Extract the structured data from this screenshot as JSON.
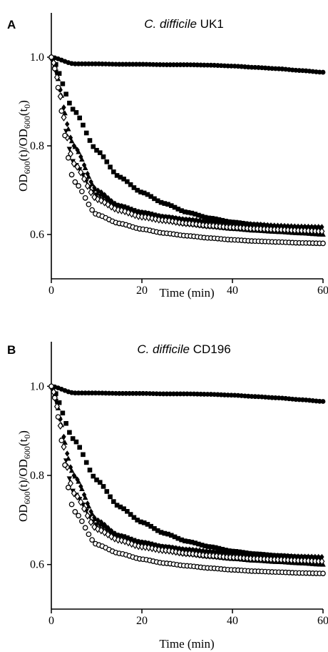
{
  "chart_data": [
    {
      "type": "scatter",
      "panel_label": "A",
      "title": {
        "italic": "C. difficile",
        "rest": " UK1"
      },
      "xlabel": "Time (min)",
      "ylabel": "OD600(t)/OD600(t0)",
      "xlim": [
        0,
        60
      ],
      "ylim": [
        0.5,
        1.1
      ],
      "xticks": [
        0,
        20,
        40,
        60
      ],
      "yticks": [
        0.6,
        0.8,
        1.0
      ],
      "ytick_labels": [
        "0.6",
        "0.8",
        "1.0"
      ],
      "grid": false,
      "series_shapes": [
        "filled-circle",
        "filled-square",
        "filled-diamond",
        "filled-triangle-up",
        "filled-triangle-down",
        "open-diamond",
        "open-circle"
      ],
      "series": [
        {
          "marker": "filled-circle",
          "x": [
            0,
            5,
            10,
            15,
            20,
            25,
            30,
            35,
            40,
            45,
            50,
            55,
            60
          ],
          "y": [
            1.0,
            0.985,
            0.985,
            0.984,
            0.984,
            0.983,
            0.983,
            0.982,
            0.98,
            0.977,
            0.974,
            0.97,
            0.966
          ]
        },
        {
          "marker": "filled-square",
          "x": [
            0,
            5,
            10,
            15,
            20,
            25,
            30,
            35,
            40,
            45,
            50,
            55,
            60
          ],
          "y": [
            1.0,
            0.88,
            0.79,
            0.73,
            0.695,
            0.67,
            0.65,
            0.637,
            0.628,
            0.622,
            0.618,
            0.616,
            0.615
          ]
        },
        {
          "marker": "filled-diamond",
          "x": [
            0,
            5,
            10,
            15,
            20,
            25,
            30,
            35,
            40,
            45,
            50,
            55,
            60
          ],
          "y": [
            1.0,
            0.8,
            0.7,
            0.665,
            0.65,
            0.64,
            0.634,
            0.63,
            0.626,
            0.623,
            0.62,
            0.618,
            0.617
          ]
        },
        {
          "marker": "filled-triangle-up",
          "x": [
            0,
            5,
            10,
            15,
            20,
            25,
            30,
            35,
            40,
            45,
            50,
            55,
            60
          ],
          "y": [
            1.0,
            0.8,
            0.7,
            0.665,
            0.645,
            0.632,
            0.624,
            0.618,
            0.613,
            0.609,
            0.606,
            0.603,
            0.6
          ]
        },
        {
          "marker": "filled-triangle-down",
          "x": [
            0,
            5,
            10,
            15,
            20,
            25,
            30,
            35,
            40,
            45,
            50,
            55,
            60
          ],
          "y": [
            1.0,
            0.76,
            0.69,
            0.665,
            0.65,
            0.64,
            0.633,
            0.628,
            0.624,
            0.62,
            0.617,
            0.614,
            0.612
          ]
        },
        {
          "marker": "open-diamond",
          "x": [
            0,
            5,
            10,
            15,
            20,
            25,
            30,
            35,
            40,
            45,
            50,
            55,
            60
          ],
          "y": [
            1.0,
            0.76,
            0.68,
            0.655,
            0.64,
            0.632,
            0.625,
            0.62,
            0.616,
            0.613,
            0.611,
            0.609,
            0.607
          ]
        },
        {
          "marker": "open-circle",
          "x": [
            0,
            5,
            10,
            15,
            20,
            25,
            30,
            35,
            40,
            45,
            50,
            55,
            60
          ],
          "y": [
            1.0,
            0.72,
            0.645,
            0.625,
            0.612,
            0.603,
            0.597,
            0.592,
            0.588,
            0.585,
            0.583,
            0.581,
            0.58
          ]
        }
      ]
    },
    {
      "type": "scatter",
      "panel_label": "B",
      "title": {
        "italic": "C. difficile",
        "rest": " CD196"
      },
      "xlabel": "Time (min)",
      "ylabel": "OD600(t)/OD600(t0)",
      "xlim": [
        0,
        60
      ],
      "ylim": [
        0.5,
        1.1
      ],
      "xticks": [
        0,
        20,
        40,
        60
      ],
      "yticks": [
        0.6,
        0.8,
        1.0
      ],
      "ytick_labels": [
        "0.6",
        "0.8",
        "1.0"
      ],
      "grid": false,
      "series_shapes": [
        "filled-circle",
        "filled-square",
        "filled-diamond",
        "filled-triangle-up",
        "filled-triangle-down",
        "open-diamond",
        "open-circle"
      ],
      "series": [
        {
          "marker": "filled-circle",
          "x": [
            0,
            5,
            10,
            15,
            20,
            25,
            30,
            35,
            40,
            45,
            50,
            55,
            60
          ],
          "y": [
            1.0,
            0.985,
            0.985,
            0.984,
            0.984,
            0.983,
            0.983,
            0.982,
            0.98,
            0.977,
            0.974,
            0.97,
            0.966
          ]
        },
        {
          "marker": "filled-square",
          "x": [
            0,
            5,
            10,
            15,
            20,
            25,
            30,
            35,
            40,
            45,
            50,
            55,
            60
          ],
          "y": [
            1.0,
            0.88,
            0.79,
            0.73,
            0.695,
            0.67,
            0.652,
            0.64,
            0.63,
            0.624,
            0.62,
            0.617,
            0.615
          ]
        },
        {
          "marker": "filled-diamond",
          "x": [
            0,
            5,
            10,
            15,
            20,
            25,
            30,
            35,
            40,
            45,
            50,
            55,
            60
          ],
          "y": [
            1.0,
            0.8,
            0.7,
            0.665,
            0.65,
            0.64,
            0.634,
            0.63,
            0.626,
            0.623,
            0.62,
            0.618,
            0.617
          ]
        },
        {
          "marker": "filled-triangle-up",
          "x": [
            0,
            5,
            10,
            15,
            20,
            25,
            30,
            35,
            40,
            45,
            50,
            55,
            60
          ],
          "y": [
            1.0,
            0.8,
            0.7,
            0.665,
            0.645,
            0.632,
            0.624,
            0.618,
            0.613,
            0.609,
            0.606,
            0.603,
            0.6
          ]
        },
        {
          "marker": "filled-triangle-down",
          "x": [
            0,
            5,
            10,
            15,
            20,
            25,
            30,
            35,
            40,
            45,
            50,
            55,
            60
          ],
          "y": [
            1.0,
            0.76,
            0.69,
            0.665,
            0.65,
            0.64,
            0.633,
            0.628,
            0.624,
            0.62,
            0.617,
            0.614,
            0.612
          ]
        },
        {
          "marker": "open-diamond",
          "x": [
            0,
            5,
            10,
            15,
            20,
            25,
            30,
            35,
            40,
            45,
            50,
            55,
            60
          ],
          "y": [
            1.0,
            0.76,
            0.68,
            0.655,
            0.64,
            0.632,
            0.625,
            0.62,
            0.616,
            0.613,
            0.611,
            0.609,
            0.607
          ]
        },
        {
          "marker": "open-circle",
          "x": [
            0,
            5,
            10,
            15,
            20,
            25,
            30,
            35,
            40,
            45,
            50,
            55,
            60
          ],
          "y": [
            1.0,
            0.72,
            0.645,
            0.625,
            0.612,
            0.603,
            0.597,
            0.592,
            0.588,
            0.585,
            0.583,
            0.581,
            0.58
          ]
        }
      ]
    }
  ]
}
